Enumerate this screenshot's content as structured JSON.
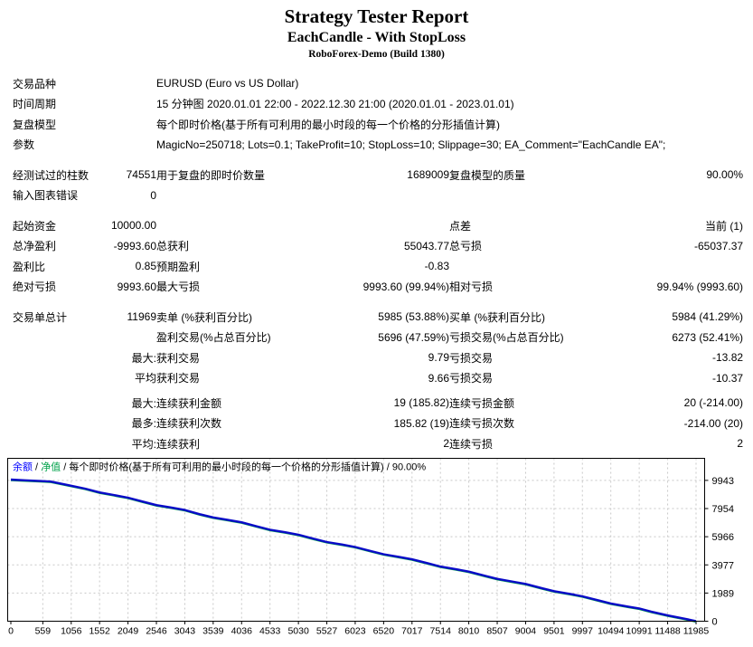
{
  "header": {
    "title": "Strategy Tester Report",
    "subtitle": "EachCandle - With StopLoss",
    "server": "RoboForex-Demo (Build 1380)"
  },
  "info_rows": [
    {
      "label": "交易品种",
      "value": "EURUSD (Euro vs US Dollar)"
    },
    {
      "label": "时间周期",
      "value": "15 分钟图 2020.01.01 22:00 - 2022.12.30 21:00 (2020.01.01 - 2023.01.01)"
    },
    {
      "label": "复盘模型",
      "value": "每个即时价格(基于所有可利用的最小时段的每一个价格的分形插值计算)"
    },
    {
      "label": "参数",
      "value": "MagicNo=250718; Lots=0.1; TakeProfit=10; StopLoss=10; Slippage=30; EA_Comment=\"EachCandle EA\";"
    }
  ],
  "stat_groups": [
    {
      "rows": [
        [
          "经测试过的柱数",
          "74551",
          "用于复盘的即时价数量",
          "1689009",
          "复盘模型的质量",
          "90.00%"
        ],
        [
          "输入图表错误",
          "0",
          "",
          "",
          "",
          ""
        ]
      ]
    },
    {
      "rows": [
        [
          "起始资金",
          "10000.00",
          "",
          "",
          "点差",
          "当前 (1)"
        ],
        [
          "总净盈利",
          "-9993.60",
          "总获利",
          "55043.77",
          "总亏损",
          "-65037.37"
        ],
        [
          "盈利比",
          "0.85",
          "预期盈利",
          "-0.83",
          "",
          ""
        ],
        [
          "绝对亏损",
          "9993.60",
          "最大亏损",
          "9993.60 (99.94%)",
          "相对亏损",
          "99.94% (9993.60)"
        ]
      ]
    },
    {
      "rows": [
        [
          "交易单总计",
          "11969",
          "卖单 (%获利百分比)",
          "5985 (53.88%)",
          "买单 (%获利百分比)",
          "5984 (41.29%)"
        ],
        [
          "",
          "",
          "盈利交易(%占总百分比)",
          "5696 (47.59%)",
          "亏损交易(%占总百分比)",
          "6273 (52.41%)"
        ],
        [
          "",
          "最大:",
          "获利交易",
          "9.79",
          "亏损交易",
          "-13.82"
        ],
        [
          "",
          "平均",
          "获利交易",
          "9.66",
          "亏损交易",
          "-10.37"
        ]
      ]
    },
    {
      "rows": [
        [
          "",
          "最大:",
          "连续获利金额",
          "19 (185.82)",
          "连续亏损金额",
          "20 (-214.00)"
        ],
        [
          "",
          "最多:",
          "连续获利次数",
          "185.82 (19)",
          "连续亏损次数",
          "-214.00 (20)"
        ],
        [
          "",
          "平均:",
          "连续获利",
          "2",
          "连续亏损",
          "2"
        ]
      ]
    }
  ],
  "chart_data": {
    "type": "line",
    "legend_parts": [
      {
        "text": "余额",
        "color": "#0000ff"
      },
      {
        "text": " / ",
        "color": "#000000"
      },
      {
        "text": "净值",
        "color": "#00a24a"
      },
      {
        "text": " / 每个即时价格(基于所有可利用的最小时段的每一个价格的分形插值计算) / 90.00%",
        "color": "#000000"
      }
    ],
    "x_ticks": [
      0,
      559,
      1056,
      1552,
      2049,
      2546,
      3043,
      3539,
      4036,
      4533,
      5030,
      5527,
      6023,
      6520,
      7017,
      7514,
      8010,
      8507,
      9004,
      9501,
      9997,
      10494,
      10991,
      11488,
      11985
    ],
    "y_ticks": [
      0,
      1989,
      3977,
      5966,
      7954,
      9943
    ],
    "xlim": [
      0,
      11985
    ],
    "ylim": [
      0,
      11500
    ],
    "grid": "dashed",
    "legend_position": "top-left",
    "colors": {
      "balance": "#0a0ac8",
      "equity": "#00a24a",
      "grid": "#c8c8c8",
      "frame": "#000000"
    },
    "series": [
      {
        "name": "余额",
        "points": [
          [
            0,
            10000
          ],
          [
            250,
            9950
          ],
          [
            559,
            9890
          ],
          [
            700,
            9860
          ],
          [
            1000,
            9610
          ],
          [
            1300,
            9360
          ],
          [
            1552,
            9090
          ],
          [
            1800,
            8910
          ],
          [
            2049,
            8720
          ],
          [
            2300,
            8450
          ],
          [
            2546,
            8200
          ],
          [
            2800,
            8030
          ],
          [
            3043,
            7850
          ],
          [
            3300,
            7560
          ],
          [
            3539,
            7330
          ],
          [
            3800,
            7150
          ],
          [
            4036,
            6980
          ],
          [
            4300,
            6700
          ],
          [
            4533,
            6460
          ],
          [
            4800,
            6280
          ],
          [
            5030,
            6110
          ],
          [
            5300,
            5820
          ],
          [
            5527,
            5590
          ],
          [
            5800,
            5410
          ],
          [
            6023,
            5240
          ],
          [
            6300,
            4950
          ],
          [
            6520,
            4730
          ],
          [
            6800,
            4530
          ],
          [
            7017,
            4370
          ],
          [
            7300,
            4080
          ],
          [
            7514,
            3860
          ],
          [
            7800,
            3660
          ],
          [
            8010,
            3500
          ],
          [
            8300,
            3200
          ],
          [
            8507,
            2990
          ],
          [
            8800,
            2780
          ],
          [
            9004,
            2630
          ],
          [
            9300,
            2320
          ],
          [
            9501,
            2120
          ],
          [
            9800,
            1910
          ],
          [
            9997,
            1760
          ],
          [
            10300,
            1450
          ],
          [
            10494,
            1250
          ],
          [
            10800,
            1030
          ],
          [
            10991,
            900
          ],
          [
            11200,
            680
          ],
          [
            11488,
            410
          ],
          [
            11700,
            240
          ],
          [
            11850,
            120
          ],
          [
            11985,
            6
          ]
        ]
      },
      {
        "name": "净值",
        "points_same_as": "余额"
      }
    ]
  }
}
